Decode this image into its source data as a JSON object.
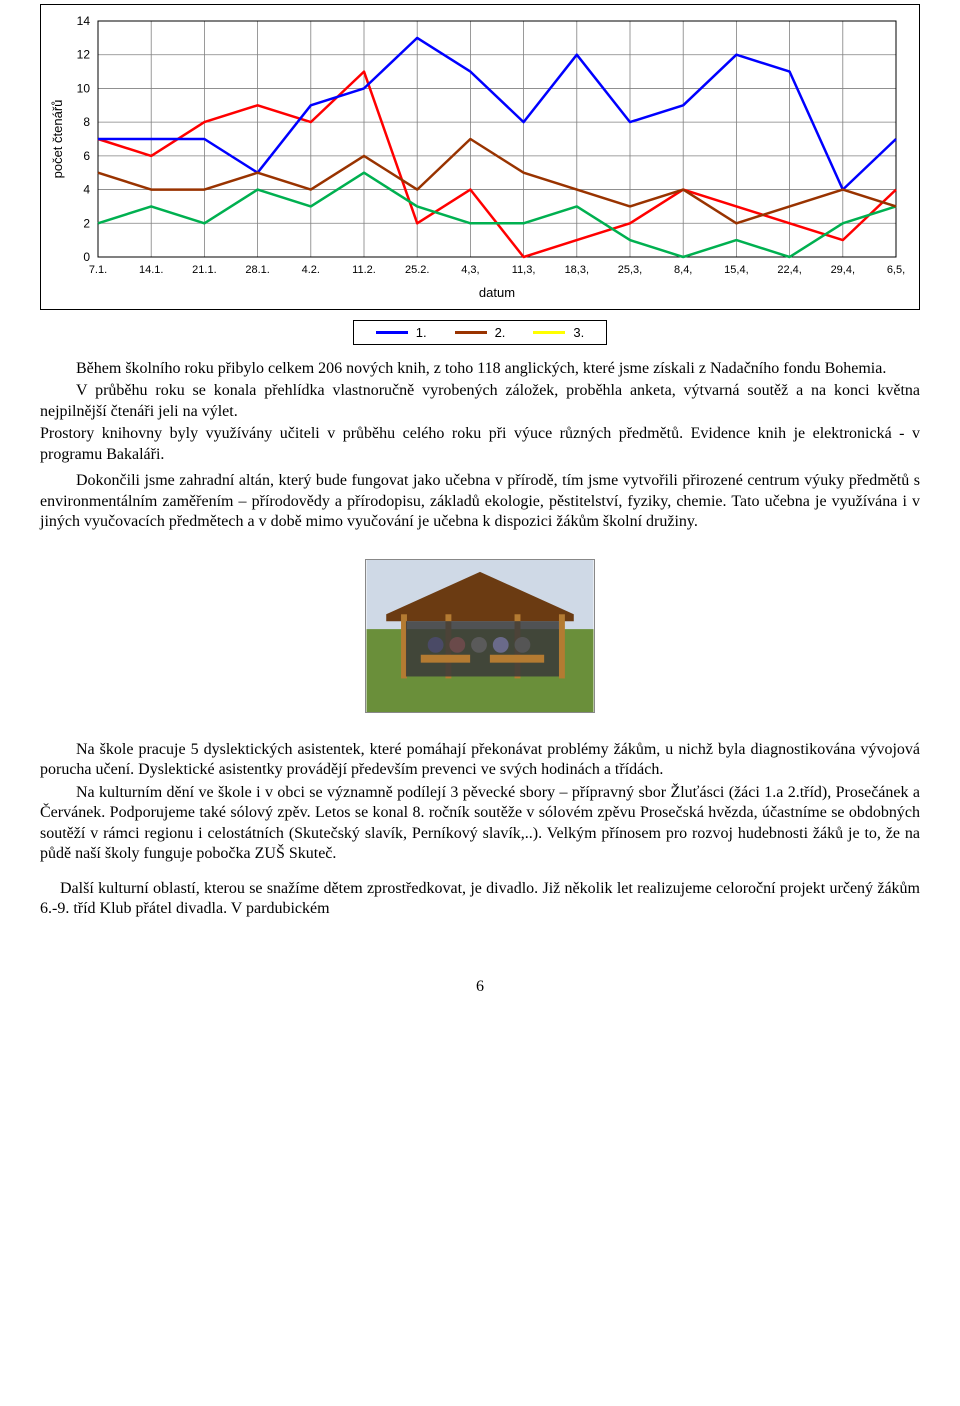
{
  "chart": {
    "type": "line",
    "ylabel": "počet čtenářů",
    "xlabel": "datum",
    "ylim": [
      0,
      14
    ],
    "ytick_step": 2,
    "x_labels": [
      "7.1.",
      "14.1.",
      "21.1.",
      "28.1.",
      "4.2.",
      "11.2.",
      "25.2.",
      "4,3,",
      "11,3,",
      "18,3,",
      "25,3,",
      "8,4,",
      "15,4,",
      "22,4,",
      "29,4,",
      "6,5,"
    ],
    "label_fontsize": 12,
    "background_color": "#ffffff",
    "grid_color": "#808080",
    "line_width": 2.5,
    "series": [
      {
        "name": "1.",
        "color": "#0000ff",
        "values": [
          7,
          7,
          7,
          5,
          9,
          10,
          13,
          11,
          8,
          12,
          8,
          9,
          12,
          11,
          4,
          7
        ]
      },
      {
        "name": "2.",
        "color": "#993300",
        "values": [
          5,
          4,
          4,
          5,
          4,
          6,
          4,
          7,
          5,
          4,
          3,
          4,
          2,
          3,
          4,
          3
        ]
      },
      {
        "name": "3.",
        "color": "#ffff00",
        "values": [
          null,
          null,
          null,
          null,
          null,
          null,
          null,
          null,
          null,
          null,
          null,
          null,
          null,
          null,
          null,
          null
        ]
      }
    ],
    "extra_series": [
      {
        "color": "#ff0000",
        "values": [
          7,
          6,
          8,
          9,
          8,
          11,
          2,
          4,
          0,
          1,
          2,
          4,
          3,
          2,
          1,
          4
        ]
      },
      {
        "color": "#00b050",
        "values": [
          2,
          3,
          2,
          4,
          3,
          5,
          3,
          2,
          2,
          3,
          1,
          0,
          1,
          0,
          2,
          3
        ]
      }
    ]
  },
  "paragraphs": {
    "p1": "Během školního roku přibylo celkem 206 nových knih, z toho 118 anglických, které jsme získali z Nadačního fondu Bohemia.",
    "p2": "V průběhu roku se konala přehlídka vlastnoručně vyrobených záložek, proběhla anketa, výtvarná soutěž a na konci května nejpilnější čtenáři jeli na výlet.",
    "p3": "Prostory knihovny byly využívány učiteli v průběhu celého roku při výuce různých předmětů. Evidence knih je elektronická - v programu Bakaláři.",
    "p4": "Dokončili jsme zahradní altán, který bude fungovat jako učebna v přírodě, tím jsme vytvořili přirozené centrum výuky předmětů s environmentálním zaměřením – přírodovědy a přírodopisu,  základů ekologie, pěstitelství, fyziky, chemie. Tato učebna je využívána i v jiných vyučovacích předmětech a v době mimo vyučování je učebna k dispozici žákům školní družiny.",
    "p5": "Na škole pracuje 5 dyslektických asistentek, které pomáhají překonávat problémy žákům, u nichž byla diagnostikována vývojová porucha učení. Dyslektické asistentky provádějí především prevenci ve svých hodinách a třídách.",
    "p6": "Na kulturním dění ve škole i v obci se významně podílejí 3 pěvecké sbory – přípravný sbor Žluťásci (žáci 1.a 2.tříd), Prosečánek a Červánek. Podporujeme také sólový zpěv. Letos se konal 8. ročník soutěže v sólovém zpěvu Prosečská hvězda, účastníme se obdobných soutěží v rámci regionu i celostátních (Skutečský slavík, Perníkový slavík,..). Velkým přínosem pro rozvoj hudebnosti žáků je to, že na půdě naší školy funguje pobočka ZUŠ Skuteč.",
    "p7": "Další kulturní oblastí, kterou se snažíme dětem zprostředkovat, je divadlo. Již několik let realizujeme celoroční projekt určený žákům 6.-9. tříd Klub přátel divadla. V pardubickém"
  },
  "photo": {
    "alt": "outdoor-classroom-pavilion",
    "colors": {
      "sky": "#cfd9e6",
      "grass": "#6a8f3a",
      "roof": "#6b3b12",
      "wood": "#b47b32",
      "shade": "#3a3a3a"
    }
  },
  "page_number": "6"
}
